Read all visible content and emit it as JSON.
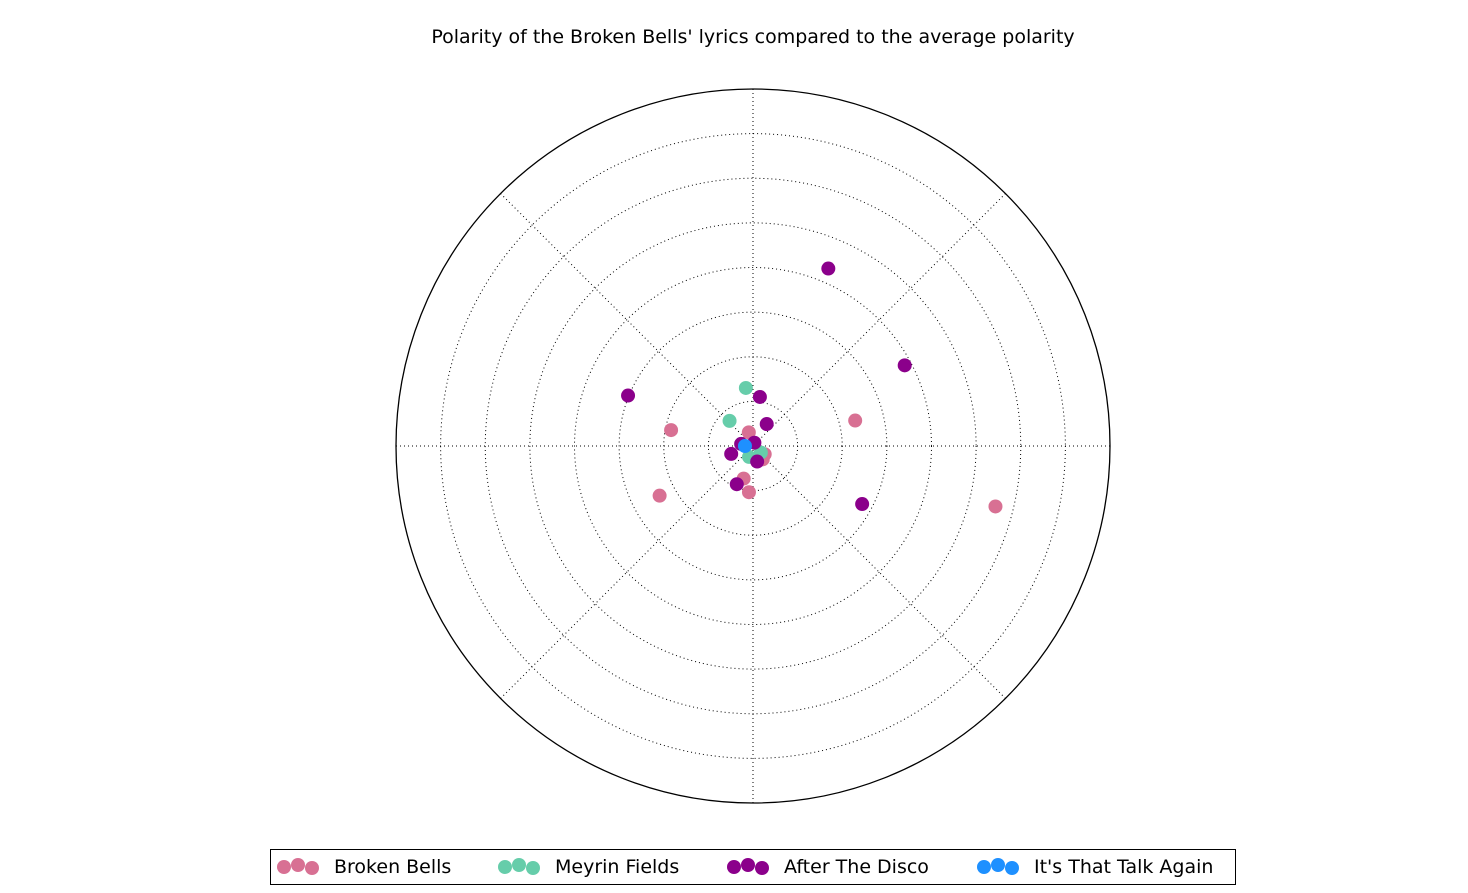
{
  "chart_data": {
    "type": "scatter",
    "projection": "polar",
    "title": "Polarity of the Broken Bells' lyrics compared to the average polarity",
    "radial_range": [
      0,
      0.8
    ],
    "radial_gridlines": [
      0.1,
      0.2,
      0.3,
      0.4,
      0.5,
      0.6,
      0.7,
      0.8
    ],
    "angular_gridlines_deg": [
      0,
      45,
      90,
      135,
      180,
      225,
      270,
      315
    ],
    "grid": true,
    "tick_labels_visible": false,
    "legend_placement": "bottom-center",
    "series": [
      {
        "name": "Broken Bells",
        "color": "#D87093",
        "points": [
          {
            "r": 0.56,
            "theta_deg": -14
          },
          {
            "r": 0.236,
            "theta_deg": 14
          },
          {
            "r": 0.187,
            "theta_deg": 169
          },
          {
            "r": 0.237,
            "theta_deg": -152
          },
          {
            "r": 0.076,
            "theta_deg": -106
          },
          {
            "r": 0.104,
            "theta_deg": -95
          },
          {
            "r": 0.032,
            "theta_deg": 107
          },
          {
            "r": 0.032,
            "theta_deg": -35
          },
          {
            "r": 0.037,
            "theta_deg": -54
          }
        ]
      },
      {
        "name": "Meyrin Fields",
        "color": "#66CDAA",
        "points": [
          {
            "r": 0.131,
            "theta_deg": 97
          },
          {
            "r": 0.077,
            "theta_deg": 133
          },
          {
            "r": 0.023,
            "theta_deg": -40
          },
          {
            "r": 0.026,
            "theta_deg": -110
          }
        ]
      },
      {
        "name": "After The Disco",
        "color": "#8B008B",
        "points": [
          {
            "r": 0.432,
            "theta_deg": 67
          },
          {
            "r": 0.385,
            "theta_deg": 28
          },
          {
            "r": 0.277,
            "theta_deg": -28
          },
          {
            "r": 0.302,
            "theta_deg": 158
          },
          {
            "r": 0.111,
            "theta_deg": 82
          },
          {
            "r": 0.058,
            "theta_deg": 58
          },
          {
            "r": 0.027,
            "theta_deg": 170
          },
          {
            "r": 0.052,
            "theta_deg": -160
          },
          {
            "r": 0.093,
            "theta_deg": -113
          },
          {
            "r": 0.008,
            "theta_deg": 67
          },
          {
            "r": 0.036,
            "theta_deg": -75
          }
        ]
      },
      {
        "name": "It's That Talk Again",
        "color": "#1E90FF",
        "points": [
          {
            "r": 0.018,
            "theta_deg": 180
          }
        ]
      }
    ]
  }
}
